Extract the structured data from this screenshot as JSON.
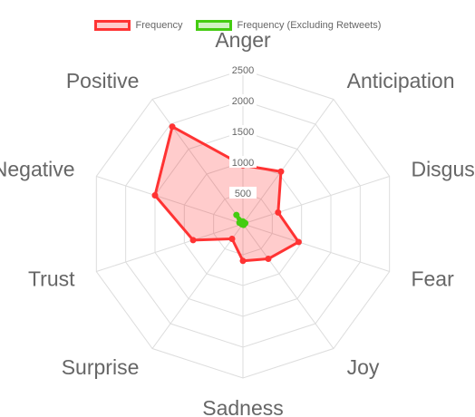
{
  "chart_data": {
    "type": "radar",
    "labels": [
      "Anger",
      "Anticipation",
      "Disgust",
      "Fear",
      "Joy",
      "Sadness",
      "Surprise",
      "Trust",
      "Negative",
      "Positive"
    ],
    "series": [
      {
        "name": "Frequency",
        "values": [
          950,
          1050,
          600,
          950,
          700,
          600,
          300,
          850,
          1500,
          1950
        ],
        "color": "#ff3333",
        "fill": "rgba(255,0,0,0.2)"
      },
      {
        "name": "Frequency (Excluding Retweets)",
        "values": [
          40,
          20,
          40,
          10,
          20,
          10,
          10,
          20,
          60,
          180
        ],
        "color": "#44cc11",
        "fill": "rgba(68,204,17,0.25)"
      }
    ],
    "r_ticks": [
      500,
      1000,
      1500,
      2000,
      2500
    ],
    "r_range": [
      0,
      2500
    ],
    "legend_position": "top",
    "grid": true
  }
}
